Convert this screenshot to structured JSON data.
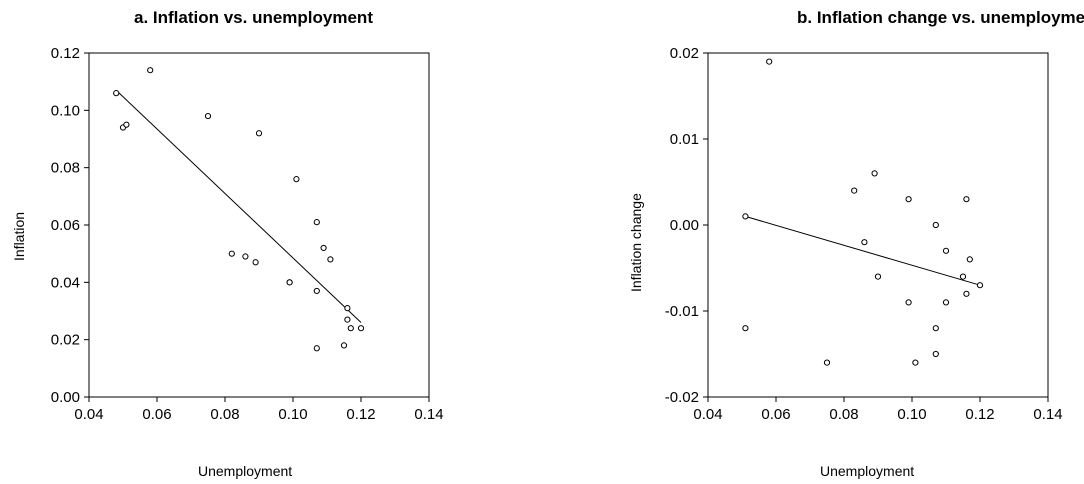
{
  "chart_data": [
    {
      "type": "scatter",
      "title": "a. Inflation vs. unemployment",
      "xlabel": "Unemployment",
      "ylabel": "Inflation",
      "xlim": [
        0.04,
        0.14
      ],
      "ylim": [
        0.0,
        0.12
      ],
      "xticks": [
        "0.04",
        "0.06",
        "0.08",
        "0.10",
        "0.12",
        "0.14"
      ],
      "yticks": [
        "0.00",
        "0.02",
        "0.04",
        "0.06",
        "0.08",
        "0.10",
        "0.12"
      ],
      "grid": false,
      "points": [
        {
          "x": 0.048,
          "y": 0.106
        },
        {
          "x": 0.05,
          "y": 0.094
        },
        {
          "x": 0.051,
          "y": 0.095
        },
        {
          "x": 0.058,
          "y": 0.114
        },
        {
          "x": 0.075,
          "y": 0.098
        },
        {
          "x": 0.082,
          "y": 0.05
        },
        {
          "x": 0.086,
          "y": 0.049
        },
        {
          "x": 0.089,
          "y": 0.047
        },
        {
          "x": 0.09,
          "y": 0.092
        },
        {
          "x": 0.099,
          "y": 0.04
        },
        {
          "x": 0.099,
          "y": 0.04
        },
        {
          "x": 0.101,
          "y": 0.076
        },
        {
          "x": 0.107,
          "y": 0.061
        },
        {
          "x": 0.107,
          "y": 0.037
        },
        {
          "x": 0.107,
          "y": 0.017
        },
        {
          "x": 0.109,
          "y": 0.052
        },
        {
          "x": 0.111,
          "y": 0.048
        },
        {
          "x": 0.115,
          "y": 0.018
        },
        {
          "x": 0.116,
          "y": 0.031
        },
        {
          "x": 0.116,
          "y": 0.027
        },
        {
          "x": 0.117,
          "y": 0.024
        },
        {
          "x": 0.12,
          "y": 0.024
        }
      ],
      "fit_line": {
        "x": [
          0.048,
          0.12
        ],
        "y": [
          0.107,
          0.026
        ]
      }
    },
    {
      "type": "scatter",
      "title": "b. Inflation change vs. unemployment",
      "xlabel": "Unemployment",
      "ylabel": "Inflation change",
      "xlim": [
        0.04,
        0.14
      ],
      "ylim": [
        -0.02,
        0.02
      ],
      "xticks": [
        "0.04",
        "0.06",
        "0.08",
        "0.10",
        "0.12",
        "0.14"
      ],
      "yticks": [
        "-0.02",
        "-0.01",
        "0.00",
        "0.01",
        "0.02"
      ],
      "grid": false,
      "points": [
        {
          "x": 0.051,
          "y": 0.001
        },
        {
          "x": 0.051,
          "y": -0.012
        },
        {
          "x": 0.058,
          "y": 0.019
        },
        {
          "x": 0.075,
          "y": -0.016
        },
        {
          "x": 0.083,
          "y": 0.004
        },
        {
          "x": 0.086,
          "y": -0.002
        },
        {
          "x": 0.089,
          "y": 0.006
        },
        {
          "x": 0.09,
          "y": -0.006
        },
        {
          "x": 0.099,
          "y": 0.003
        },
        {
          "x": 0.099,
          "y": -0.009
        },
        {
          "x": 0.101,
          "y": -0.016
        },
        {
          "x": 0.107,
          "y": 0.0
        },
        {
          "x": 0.107,
          "y": -0.012
        },
        {
          "x": 0.107,
          "y": -0.015
        },
        {
          "x": 0.11,
          "y": -0.003
        },
        {
          "x": 0.11,
          "y": -0.009
        },
        {
          "x": 0.115,
          "y": -0.006
        },
        {
          "x": 0.116,
          "y": 0.003
        },
        {
          "x": 0.116,
          "y": -0.008
        },
        {
          "x": 0.117,
          "y": -0.004
        },
        {
          "x": 0.12,
          "y": -0.007
        }
      ],
      "fit_line": {
        "x": [
          0.051,
          0.12
        ],
        "y": [
          0.001,
          -0.007
        ]
      }
    }
  ]
}
